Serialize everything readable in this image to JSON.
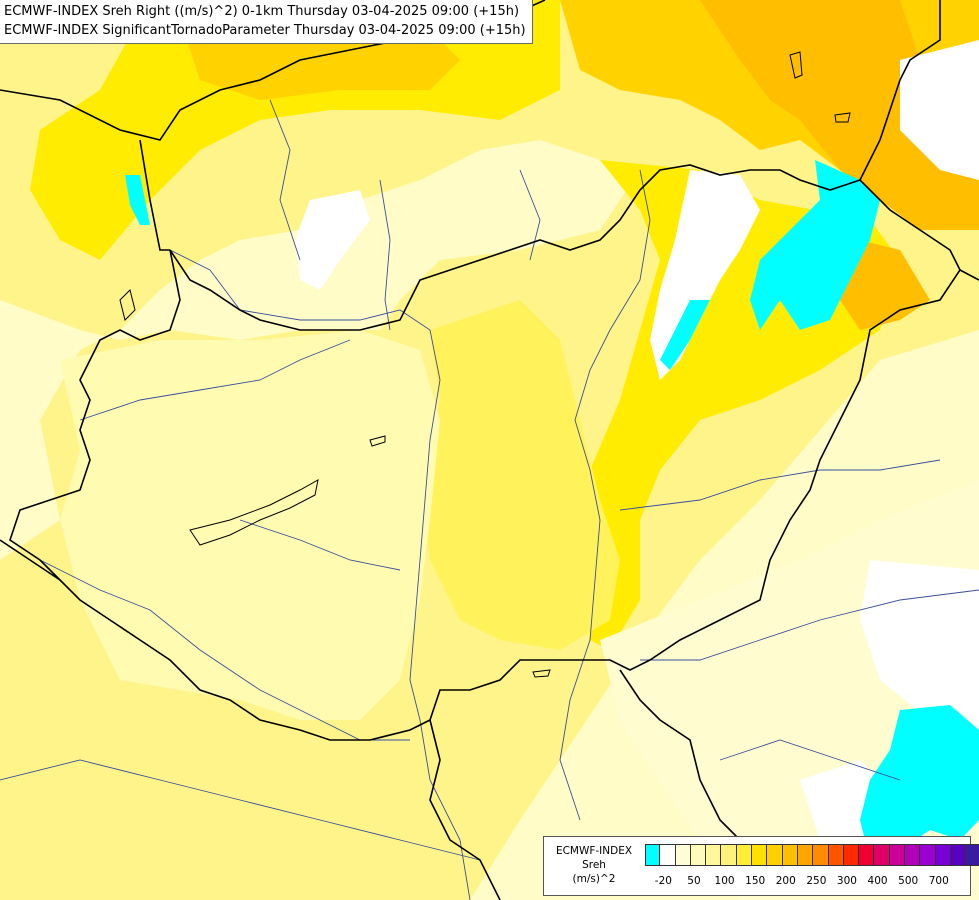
{
  "header": {
    "line1": "ECMWF-INDEX Sreh Right ((m/s)^2) 0-1km Thursday 03-04-2025 09:00 (+15h)",
    "line2": "ECMWF-INDEX SignificantTornadoParameter Thursday 03-04-2025 09:00 (+15h)"
  },
  "legend": {
    "title_line1": "ECMWF-INDEX",
    "title_line2": "Sreh",
    "title_line3": "(m/s)^2",
    "colors": [
      "#00ffff",
      "#ffffff",
      "#fffcd8",
      "#fffbb8",
      "#fff79a",
      "#fff27a",
      "#ffee33",
      "#ffe100",
      "#ffd000",
      "#ffbf00",
      "#ffa500",
      "#ff8c00",
      "#ff5500",
      "#ff2a00",
      "#ee0033",
      "#dd0066",
      "#cc0099",
      "#b000b8",
      "#9a00d0",
      "#7a00d8",
      "#5a00c0",
      "#3a1aa0",
      "#150080"
    ],
    "ticks": [
      "-20",
      "50",
      "100",
      "150",
      "200",
      "250",
      "300",
      "400",
      "500",
      "700"
    ]
  },
  "map": {
    "field_colors": {
      "cyan": "#00ffff",
      "white": "#ffffff",
      "very_light": "#fffcd0",
      "light": "#fffbb0",
      "yellow": "#fff48a",
      "medium_yellow": "#fff25a",
      "strong_yellow": "#ffec00",
      "gold": "#ffd200",
      "orange": "#ffbe00"
    },
    "border_color": "#000000",
    "river_color": "#3a4f9a"
  }
}
